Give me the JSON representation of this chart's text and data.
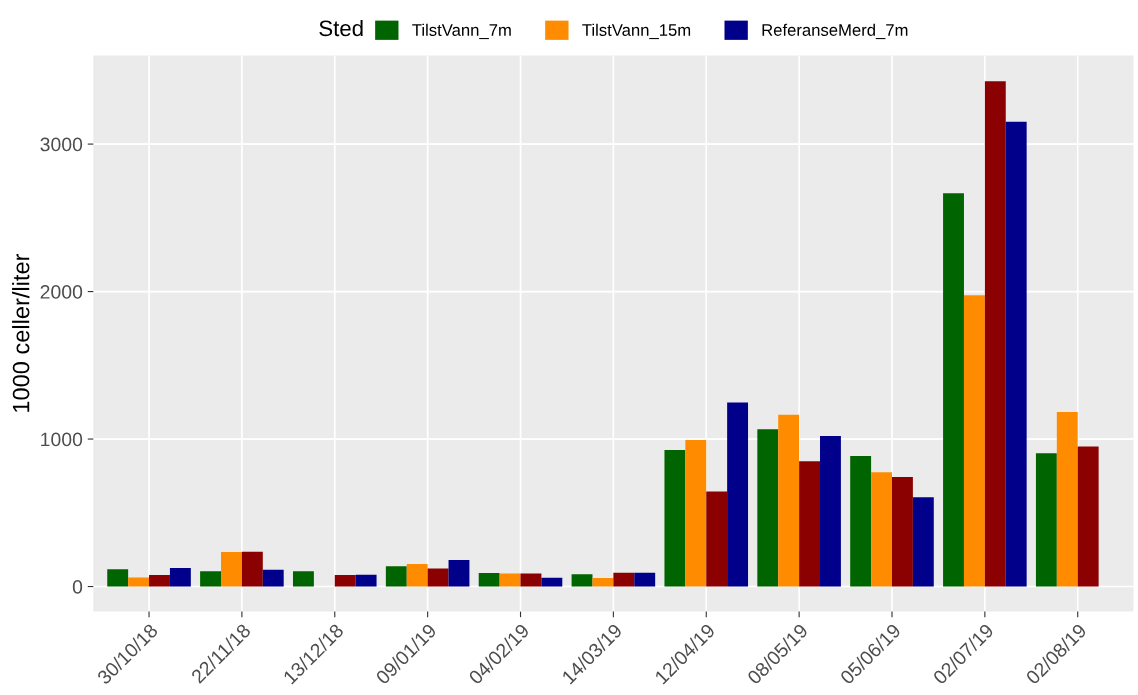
{
  "chart_data": {
    "type": "bar",
    "ylabel": "1000 celler/liter",
    "legend_title": "Sted",
    "legend": "top",
    "categories": [
      "30/10/18",
      "22/11/18",
      "13/12/18",
      "09/01/19",
      "04/02/19",
      "14/03/19",
      "12/04/19",
      "08/05/19",
      "05/06/19",
      "02/07/19",
      "02/08/19"
    ],
    "series": [
      {
        "name": "TilstVann_7m",
        "color": "#006400",
        "values": [
          117,
          104,
          104,
          138,
          91,
          83,
          926,
          1066,
          885,
          2667,
          903
        ]
      },
      {
        "name": "TilstVann_15m",
        "color": "#ff8c00",
        "values": [
          62,
          234,
          null,
          153,
          88,
          57,
          993,
          1165,
          775,
          1975,
          1184
        ]
      },
      {
        "color": "#8b0000",
        "values": [
          79,
          236,
          79,
          122,
          88,
          94,
          644,
          850,
          742,
          3426,
          950
        ]
      },
      {
        "name": "ReferanseMerd_7m",
        "color": "#00008b",
        "values": [
          126,
          113,
          80,
          180,
          60,
          94,
          1248,
          1020,
          605,
          3151,
          null
        ]
      }
    ],
    "ylim": [
      -170,
      3600
    ],
    "yticks": [
      0,
      1000,
      2000,
      3000
    ],
    "grid": true
  }
}
